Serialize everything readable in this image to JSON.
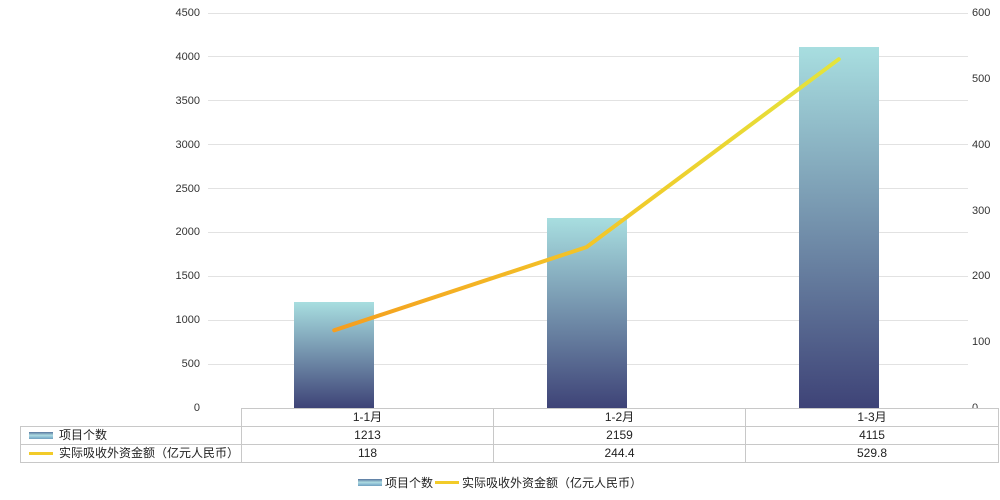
{
  "chart_data": {
    "type": "combo",
    "categories": [
      "1-1月",
      "1-2月",
      "1-3月"
    ],
    "series": [
      {
        "name": "项目个数",
        "type": "bar",
        "axis": "left",
        "values": [
          1213,
          2159,
          4115
        ]
      },
      {
        "name": "实际吸收外资金额（亿元人民币）",
        "type": "line",
        "axis": "right",
        "values": [
          118,
          244.4,
          529.8
        ]
      }
    ],
    "left_axis": {
      "min": 0,
      "max": 4500,
      "step": 500
    },
    "right_axis": {
      "min": 0,
      "max": 600,
      "step": 100
    },
    "grid": true,
    "legend_position": "bottom",
    "colors": {
      "bar_gradient_top": "#a8dee0",
      "bar_gradient_bottom": "#3e4377",
      "line_gradient": [
        "#f59e1f",
        "#f2c829",
        "#e4e43c"
      ],
      "line_swatch": "#f2cb29",
      "grid_color": "#e2e2e2",
      "table_border": "#c8c8c8",
      "text": "#333333"
    }
  }
}
